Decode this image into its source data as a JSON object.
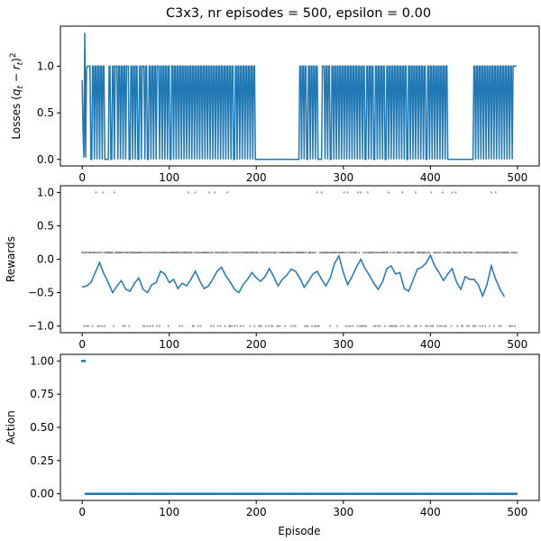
{
  "figure_title": "C3x3, nr episodes = 500, epsilon = 0.00",
  "colors": {
    "series": "#1f77b4",
    "scatter": "#808080",
    "axes": "#000000"
  },
  "chart_data": [
    {
      "type": "line",
      "title": "C3x3, nr episodes = 500, epsilon = 0.00",
      "xlabel": "",
      "ylabel": "Losses (q_t − r_t)²",
      "xlim": [
        -25,
        525
      ],
      "ylim": [
        -0.07,
        1.43
      ],
      "xticks": [
        0,
        100,
        200,
        300,
        400,
        500
      ],
      "yticks": [
        0.0,
        0.5,
        1.0
      ],
      "ytick_labels": [
        "0.0",
        "0.5",
        "1.0"
      ],
      "series": [
        {
          "values_note_only": "",
          "first_points": [
            [
              0,
              0.85
            ],
            [
              1,
              0.3
            ],
            [
              2,
              0.02
            ],
            [
              3,
              1.36
            ],
            [
              4,
              0.02
            ],
            [
              5,
              0.98
            ],
            [
              6,
              1.0
            ],
            [
              7,
              1.0
            ]
          ]
        }
      ],
      "ones_intervals": [
        [
          5,
          9
        ],
        [
          12,
          13
        ],
        [
          15,
          16
        ],
        [
          18,
          19
        ],
        [
          21,
          22
        ],
        [
          24,
          25
        ],
        [
          31,
          32
        ],
        [
          35,
          36
        ],
        [
          38,
          40
        ],
        [
          42,
          43
        ],
        [
          45,
          46
        ],
        [
          48,
          49
        ],
        [
          51,
          53
        ],
        [
          56,
          57
        ],
        [
          59,
          60
        ],
        [
          62,
          63
        ],
        [
          66,
          67
        ],
        [
          69,
          71
        ],
        [
          73,
          74
        ],
        [
          77,
          78
        ],
        [
          80,
          81
        ],
        [
          83,
          84
        ],
        [
          86,
          88
        ],
        [
          90,
          91
        ],
        [
          93,
          94
        ],
        [
          96,
          97
        ],
        [
          99,
          100
        ],
        [
          103,
          104
        ],
        [
          106,
          107
        ],
        [
          109,
          110
        ],
        [
          112,
          113
        ],
        [
          115,
          116
        ],
        [
          118,
          119
        ],
        [
          121,
          122
        ],
        [
          124,
          125
        ],
        [
          127,
          128
        ],
        [
          130,
          131
        ],
        [
          133,
          134
        ],
        [
          136,
          137
        ],
        [
          139,
          140
        ],
        [
          142,
          143
        ],
        [
          145,
          146
        ],
        [
          148,
          149
        ],
        [
          151,
          152
        ],
        [
          154,
          155
        ],
        [
          157,
          158
        ],
        [
          160,
          161
        ],
        [
          163,
          164
        ],
        [
          166,
          167
        ],
        [
          169,
          170
        ],
        [
          172,
          173
        ],
        [
          176,
          177
        ],
        [
          179,
          180
        ],
        [
          182,
          183
        ],
        [
          185,
          186
        ],
        [
          188,
          189
        ],
        [
          191,
          192
        ],
        [
          194,
          195
        ],
        [
          197,
          198
        ],
        [
          250,
          251
        ],
        [
          253,
          254
        ],
        [
          256,
          257
        ],
        [
          260,
          261
        ],
        [
          263,
          264
        ],
        [
          266,
          267
        ],
        [
          269,
          270
        ],
        [
          276,
          278
        ],
        [
          280,
          281
        ],
        [
          283,
          284
        ],
        [
          287,
          288
        ],
        [
          290,
          291
        ],
        [
          293,
          294
        ],
        [
          296,
          297
        ],
        [
          299,
          300
        ],
        [
          302,
          303
        ],
        [
          305,
          306
        ],
        [
          308,
          309
        ],
        [
          311,
          312
        ],
        [
          314,
          315
        ],
        [
          317,
          318
        ],
        [
          320,
          321
        ],
        [
          323,
          324
        ],
        [
          327,
          328
        ],
        [
          330,
          331
        ],
        [
          333,
          334
        ],
        [
          337,
          338
        ],
        [
          340,
          341
        ],
        [
          343,
          344
        ],
        [
          346,
          347
        ],
        [
          350,
          351
        ],
        [
          353,
          354
        ],
        [
          356,
          357
        ],
        [
          359,
          360
        ],
        [
          362,
          363
        ],
        [
          365,
          366
        ],
        [
          368,
          369
        ],
        [
          371,
          372
        ],
        [
          375,
          376
        ],
        [
          378,
          379
        ],
        [
          381,
          382
        ],
        [
          384,
          385
        ],
        [
          387,
          388
        ],
        [
          390,
          391
        ],
        [
          393,
          394
        ],
        [
          397,
          398
        ],
        [
          400,
          401
        ],
        [
          403,
          404
        ],
        [
          406,
          407
        ],
        [
          409,
          410
        ],
        [
          412,
          413
        ],
        [
          415,
          416
        ],
        [
          418,
          419
        ],
        [
          450,
          451
        ],
        [
          453,
          454
        ],
        [
          456,
          457
        ],
        [
          459,
          460
        ],
        [
          462,
          463
        ],
        [
          465,
          466
        ],
        [
          468,
          469
        ],
        [
          471,
          472
        ],
        [
          474,
          475
        ],
        [
          477,
          478
        ],
        [
          480,
          481
        ],
        [
          483,
          484
        ],
        [
          486,
          487
        ],
        [
          489,
          490
        ],
        [
          492,
          493
        ],
        [
          495,
          496
        ],
        [
          497,
          499
        ]
      ]
    },
    {
      "type": "scatter+line",
      "title": "",
      "xlabel": "",
      "ylabel": "Rewards",
      "xlim": [
        -25,
        525
      ],
      "ylim": [
        -1.1,
        1.1
      ],
      "xticks": [
        0,
        100,
        200,
        300,
        400,
        500
      ],
      "yticks": [
        -1.0,
        -0.5,
        0.0,
        0.5,
        1.0
      ],
      "ytick_labels": [
        "−1.0",
        "−0.5",
        "0.0",
        "0.5",
        "1.0"
      ],
      "reward_levels": {
        "win": 1.0,
        "draw": 0.1,
        "loss": -1.0
      },
      "win_episodes": [
        16,
        24,
        37,
        122,
        130,
        146,
        152,
        167,
        270,
        275,
        301,
        305,
        317,
        320,
        328,
        352,
        368,
        383,
        401,
        414,
        425,
        429,
        470,
        475
      ],
      "draw_ranges": [
        [
          0,
          500
        ]
      ],
      "loss_ranges": [
        [
          0,
          500
        ]
      ],
      "moving_average": {
        "x": [
          0,
          5,
          10,
          15,
          20,
          25,
          30,
          35,
          40,
          45,
          50,
          55,
          60,
          65,
          70,
          75,
          80,
          85,
          90,
          95,
          100,
          105,
          110,
          115,
          120,
          125,
          130,
          135,
          140,
          145,
          150,
          155,
          160,
          165,
          170,
          175,
          180,
          185,
          190,
          195,
          200,
          205,
          210,
          215,
          220,
          225,
          230,
          235,
          240,
          245,
          250,
          255,
          260,
          265,
          270,
          275,
          280,
          285,
          290,
          295,
          300,
          305,
          310,
          315,
          320,
          325,
          330,
          335,
          340,
          345,
          350,
          355,
          360,
          365,
          370,
          375,
          380,
          385,
          390,
          395,
          400,
          405,
          410,
          415,
          420,
          425,
          430,
          435,
          440,
          445,
          450,
          455,
          460,
          465,
          470,
          475,
          480,
          485
        ],
        "y": [
          -0.42,
          -0.4,
          -0.35,
          -0.2,
          -0.05,
          -0.22,
          -0.35,
          -0.5,
          -0.4,
          -0.32,
          -0.45,
          -0.48,
          -0.36,
          -0.28,
          -0.45,
          -0.5,
          -0.38,
          -0.35,
          -0.18,
          -0.22,
          -0.35,
          -0.3,
          -0.44,
          -0.36,
          -0.4,
          -0.3,
          -0.18,
          -0.32,
          -0.44,
          -0.4,
          -0.3,
          -0.18,
          -0.12,
          -0.25,
          -0.34,
          -0.45,
          -0.5,
          -0.38,
          -0.3,
          -0.2,
          -0.28,
          -0.33,
          -0.26,
          -0.14,
          -0.26,
          -0.4,
          -0.3,
          -0.24,
          -0.15,
          -0.18,
          -0.28,
          -0.42,
          -0.33,
          -0.22,
          -0.18,
          -0.3,
          -0.4,
          -0.28,
          -0.06,
          0.05,
          -0.2,
          -0.38,
          -0.26,
          -0.12,
          0.0,
          -0.14,
          -0.24,
          -0.36,
          -0.45,
          -0.34,
          -0.14,
          -0.1,
          -0.22,
          -0.2,
          -0.44,
          -0.48,
          -0.32,
          -0.15,
          -0.12,
          -0.06,
          0.06,
          -0.1,
          -0.2,
          -0.32,
          -0.22,
          -0.14,
          -0.34,
          -0.45,
          -0.26,
          -0.3,
          -0.3,
          -0.38,
          -0.55,
          -0.38,
          -0.1,
          -0.3,
          -0.45,
          -0.56
        ]
      }
    },
    {
      "type": "scatter",
      "title": "",
      "xlabel": "Episode",
      "ylabel": "Action",
      "xlim": [
        -25,
        525
      ],
      "ylim": [
        -0.05,
        1.05
      ],
      "xticks": [
        0,
        100,
        200,
        300,
        400,
        500
      ],
      "yticks": [
        0.0,
        0.25,
        0.5,
        0.75,
        1.0
      ],
      "ytick_labels": [
        "0.00",
        "0.25",
        "0.50",
        "0.75",
        "1.00"
      ],
      "action_one_episodes": [
        0,
        1,
        2,
        3
      ],
      "action_zero_range": [
        4,
        499
      ]
    }
  ]
}
